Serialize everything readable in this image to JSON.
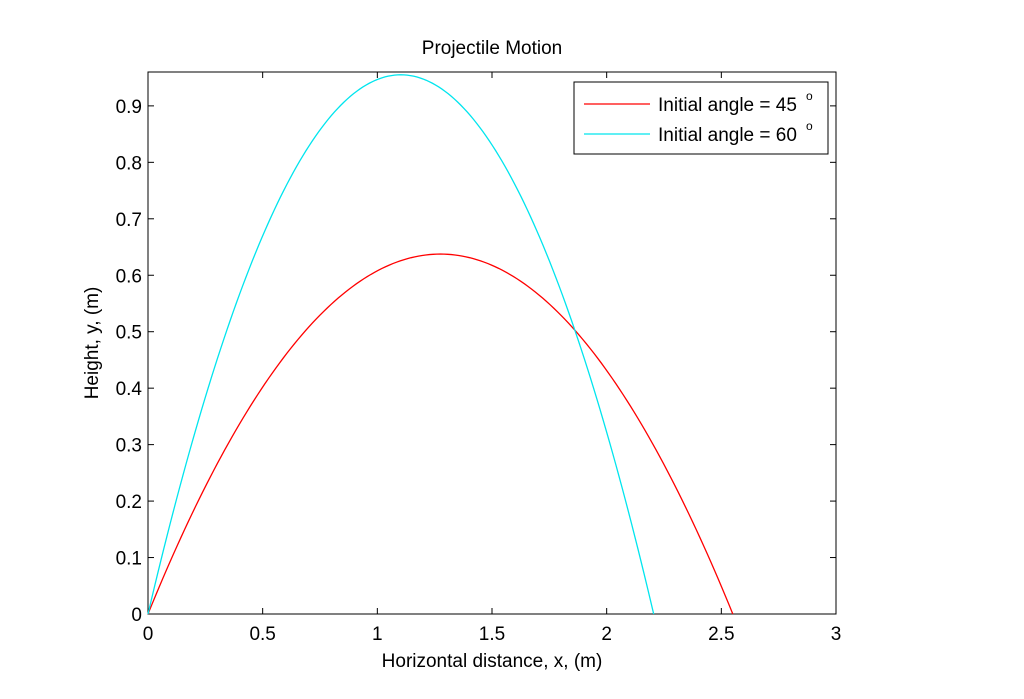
{
  "chart_data": {
    "type": "line",
    "title": "Projectile Motion",
    "xlabel": "Horizontal distance, x, (m)",
    "ylabel": "Height, y, (m)",
    "xlim": [
      0,
      3
    ],
    "ylim": [
      0,
      0.96
    ],
    "xticks": [
      0,
      0.5,
      1,
      1.5,
      2,
      2.5,
      3
    ],
    "xtick_labels": [
      "0",
      "0.5",
      "1",
      "1.5",
      "2",
      "2.5",
      "3"
    ],
    "yticks": [
      0,
      0.1,
      0.2,
      0.3,
      0.4,
      0.5,
      0.6,
      0.7,
      0.8,
      0.9
    ],
    "ytick_labels": [
      "0",
      "0.1",
      "0.2",
      "0.3",
      "0.4",
      "0.5",
      "0.6",
      "0.7",
      "0.8",
      "0.9"
    ],
    "grid": false,
    "legend_position": "top-right",
    "series": [
      {
        "name": "Initial angle = 45",
        "label_text": "Initial angle = 45",
        "label_sup": "o",
        "color": "#ff0000",
        "x_range": [
          0,
          2.55
        ],
        "peak_x": 1.275,
        "peak_y": 0.6375
      },
      {
        "name": "Initial angle = 60",
        "label_text": "Initial angle = 60",
        "label_sup": "o",
        "color": "#00e5ee",
        "x_range": [
          0,
          2.205
        ],
        "peak_x": 1.1025,
        "peak_y": 0.955
      }
    ]
  }
}
